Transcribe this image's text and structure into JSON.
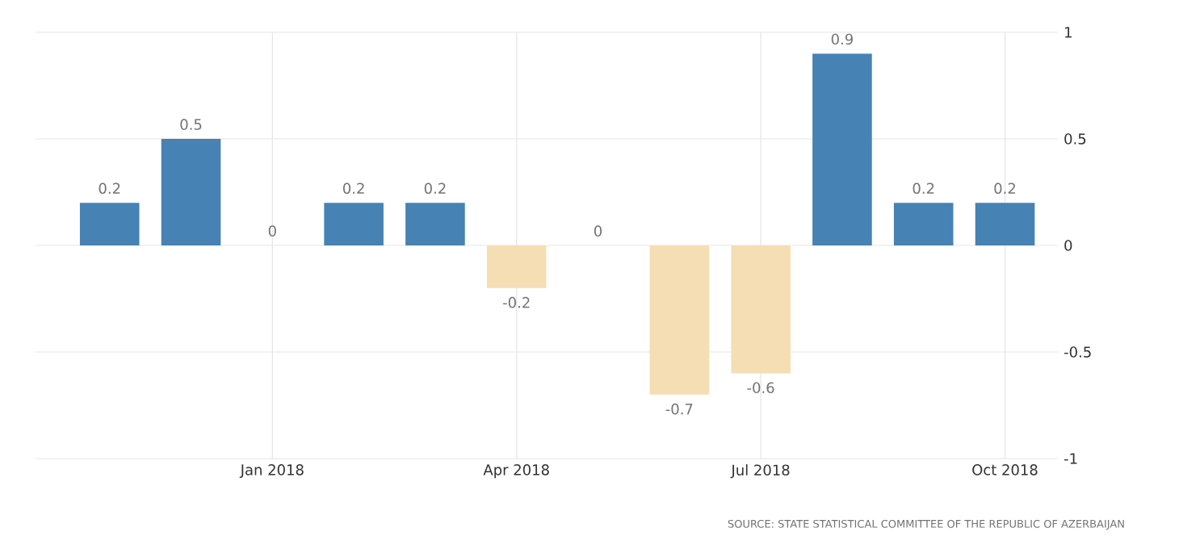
{
  "chart_data": {
    "type": "bar",
    "categories": [
      null,
      null,
      "Jan 2018",
      null,
      null,
      "Apr 2018",
      null,
      null,
      "Jul 2018",
      null,
      null,
      "Oct 2018"
    ],
    "values": [
      0.2,
      0.5,
      0,
      0.2,
      0.2,
      -0.2,
      0,
      -0.7,
      -0.6,
      0.9,
      0.2,
      0.2
    ],
    "colors": [
      "#4682b4",
      "#4682b4",
      "#4682b4",
      "#4682b4",
      "#4682b4",
      "#f5deb3",
      "#4682b4",
      "#f5deb3",
      "#f5deb3",
      "#4682b4",
      "#4682b4",
      "#4682b4"
    ],
    "ylim": [
      -1,
      1
    ],
    "yticks": [
      -1,
      -0.5,
      0,
      0.5,
      1
    ],
    "grid": true,
    "data_labels": true,
    "annotations": [
      "SOURCE: STATE STATISTICAL COMMITTEE OF THE REPUBLIC OF AZERBAIJAN"
    ]
  }
}
